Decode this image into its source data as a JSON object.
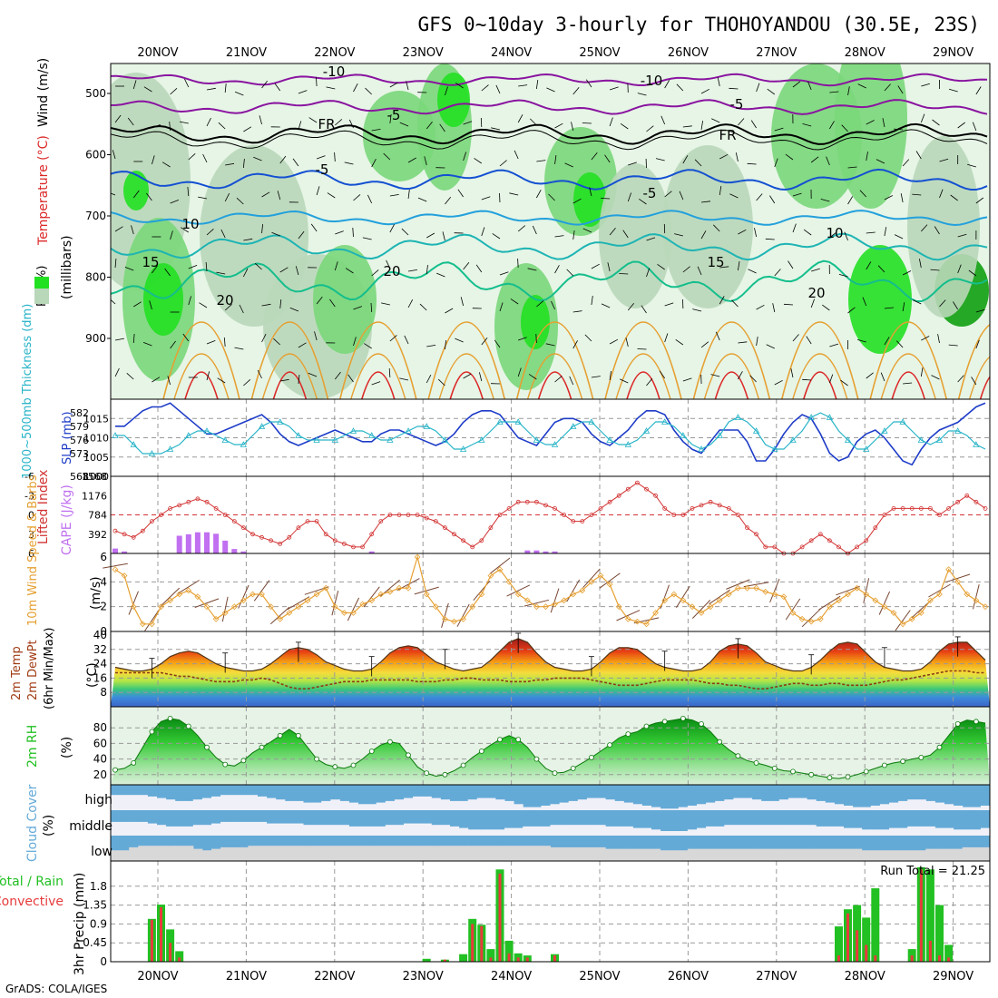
{
  "title": "GFS 0~10day 3-hourly for THOHOYANDOU (30.5E, 23S)",
  "footer": "GrADS: COLA/IGES",
  "dates": [
    "20NOV",
    "21NOV",
    "22NOV",
    "23NOV",
    "24NOV",
    "25NOV",
    "26NOV",
    "27NOV",
    "28NOV",
    "29NOV"
  ],
  "colors": {
    "rh_light": "#e6f5e6",
    "rh_mid": "#b9d7b9",
    "rh_green": "#7ad77a",
    "rh_bright": "#22e022",
    "rh_dark": "#10a010",
    "temp_purple": "#8a14a0",
    "temp_black": "#000000",
    "temp_blue": "#1450d2",
    "temp_lblue": "#23a0dc",
    "temp_teal": "#1eb4b4",
    "temp_green": "#14be8c",
    "temp_orange": "#e6a032",
    "temp_red": "#dc2828",
    "slp": "#1e3cc8",
    "thickness": "#28b4c8",
    "lifted": "#d23232",
    "cape": "#c070f0",
    "wind": "#e6a032",
    "barb": "#784632",
    "cloud": "#64aad7",
    "cloud_gap": "#f0f0f8",
    "precip_total": "#22c022",
    "precip_conv": "#e63c3c"
  },
  "panels": {
    "upper": {
      "axis_label_rh": "RH (%)",
      "axis_label_temp": "Temperature (°C)",
      "axis_label_wind": "Wind (m/s)",
      "axis_label_unit": "(millibars)",
      "pressure_ticks": [
        "500",
        "600",
        "700",
        "800",
        "900"
      ],
      "contour_labels": [
        "-10",
        "-10",
        "-5",
        "-5",
        "FR",
        "FR",
        "-5",
        "-5",
        "10",
        "15",
        "20",
        "20",
        "15",
        "20",
        "10"
      ]
    },
    "slp": {
      "label_slp": "SLP (mb)",
      "label_thick": "1000~500mb Thickness (dm)",
      "slp_ticks": [
        "1000",
        "1005",
        "1010",
        "1015"
      ],
      "thick_ticks": [
        "568",
        "573",
        "576",
        "579",
        "582"
      ]
    },
    "cape": {
      "label_li": "Lifted Index",
      "label_cape": "CAPE (J/kg)",
      "li_ticks": [
        "-6",
        "-3",
        "0",
        "3",
        "6"
      ],
      "cape_ticks": [
        "1568",
        "1176",
        "784",
        "392"
      ]
    },
    "wind10": {
      "label": "10m Wind Speed & Barbs",
      "unit": "(m/s)",
      "ticks": [
        "0",
        "2",
        "4",
        "6"
      ]
    },
    "temp2m": {
      "label1": "2m Temp",
      "label2": "2m DewPt",
      "label3": "(6hr Min/Max)",
      "unit": "(°C)",
      "ticks": [
        "8",
        "16",
        "24",
        "32",
        "40"
      ]
    },
    "rh2m": {
      "label": "2m RH",
      "unit": "(%)",
      "ticks": [
        "20",
        "40",
        "60",
        "80"
      ]
    },
    "cloud": {
      "label": "Cloud Cover",
      "unit": "(%)",
      "levels": [
        "high",
        "middle",
        "low"
      ]
    },
    "precip": {
      "label1": "3hr Precip (mm)",
      "label2": "Total / Rain",
      "label3": "Convective",
      "ticks": [
        "0",
        "0.45",
        "0.9",
        "1.35",
        "1.8"
      ],
      "run_total": "Run Total = 21.25"
    }
  },
  "chart_data": {
    "type": "meteogram",
    "time_step_hours": 3,
    "x_dates": [
      "20NOV",
      "21NOV",
      "22NOV",
      "23NOV",
      "24NOV",
      "25NOV",
      "26NOV",
      "27NOV",
      "28NOV",
      "29NOV"
    ],
    "slp_mb": [
      1013,
      1013,
      1015,
      1017,
      1018,
      1018,
      1019,
      1017,
      1015,
      1013,
      1011,
      1011,
      1012,
      1013,
      1014,
      1015,
      1016,
      1014,
      1011,
      1009,
      1008,
      1009,
      1010,
      1011,
      1012,
      1011,
      1010,
      1009,
      1009,
      1011,
      1012,
      1012,
      1011,
      1010,
      1009,
      1008,
      1009,
      1011,
      1014,
      1016,
      1017,
      1017,
      1016,
      1013,
      1010,
      1009,
      1008,
      1011,
      1014,
      1015,
      1015,
      1014,
      1011,
      1009,
      1008,
      1010,
      1012,
      1015,
      1017,
      1017,
      1016,
      1012,
      1009,
      1007,
      1006,
      1009,
      1012,
      1012,
      1012,
      1009,
      1004,
      1004,
      1007,
      1011,
      1014,
      1016,
      1015,
      1011,
      1006,
      1004,
      1005,
      1009,
      1011,
      1012,
      1010,
      1007,
      1004,
      1003,
      1007,
      1010,
      1012,
      1013,
      1014,
      1016,
      1018,
      1019
    ],
    "thickness_dm": [
      577,
      577,
      575,
      573,
      573,
      573,
      574,
      575,
      577,
      578,
      578,
      577,
      576,
      575,
      575,
      577,
      579,
      580,
      580,
      579,
      577,
      576,
      576,
      576,
      576,
      577,
      578,
      578,
      577,
      576,
      576,
      577,
      578,
      579,
      579,
      578,
      576,
      574,
      574,
      575,
      576,
      578,
      580,
      580,
      580,
      578,
      576,
      575,
      575,
      577,
      579,
      580,
      580,
      578,
      576,
      575,
      575,
      576,
      578,
      580,
      580,
      579,
      577,
      575,
      574,
      575,
      577,
      580,
      581,
      580,
      578,
      575,
      574,
      574,
      576,
      578,
      581,
      582,
      581,
      578,
      576,
      574,
      574,
      576,
      578,
      580,
      580,
      578,
      576,
      575,
      576,
      578,
      578,
      577,
      575,
      574
    ],
    "lifted_index": [
      2.5,
      3,
      3.5,
      2.5,
      1,
      0,
      -1,
      -1.5,
      -2,
      -2.5,
      -2,
      -1,
      0,
      1,
      2,
      3,
      3.5,
      4,
      4.5,
      3.5,
      2,
      1,
      1,
      3,
      4,
      4.5,
      5,
      5,
      3,
      1,
      0,
      0,
      0,
      0,
      0.5,
      1,
      2,
      3,
      4,
      5,
      4,
      2,
      0,
      -1,
      -2,
      -2,
      -2,
      -1.5,
      -1,
      0,
      1,
      1,
      0,
      -1,
      -2,
      -3,
      -4,
      -5,
      -4,
      -3,
      -1,
      0,
      0,
      -1,
      -1.5,
      -2,
      -1.5,
      -1,
      0,
      2,
      3,
      5,
      5,
      6,
      6,
      5,
      4,
      3,
      4,
      5,
      6,
      5,
      4,
      2,
      0,
      -1,
      -1,
      -1,
      -1,
      -1,
      0,
      -1,
      -2,
      -3,
      -2,
      -1
    ],
    "cape_jkg": [
      100,
      40,
      0,
      0,
      0,
      0,
      0,
      360,
      390,
      430,
      430,
      400,
      260,
      90,
      40,
      0,
      0,
      0,
      0,
      0,
      0,
      0,
      0,
      0,
      0,
      0,
      0,
      0,
      40,
      0,
      0,
      0,
      0,
      0,
      0,
      0,
      0,
      0,
      0,
      0,
      0,
      0,
      0,
      0,
      0,
      60,
      60,
      40,
      40,
      0,
      0,
      0,
      0,
      0,
      0,
      0,
      0,
      0,
      0,
      0,
      0,
      0,
      0,
      0,
      0,
      0,
      0,
      0,
      0,
      0,
      0,
      0,
      0,
      0,
      0,
      0,
      0,
      0,
      0,
      0,
      0,
      0,
      0,
      0,
      0,
      0,
      0,
      0,
      0,
      0,
      0,
      0,
      0,
      0,
      0,
      0
    ],
    "wind10_ms": [
      5,
      4.5,
      2,
      0.6,
      0.6,
      2,
      2.5,
      3,
      3.3,
      2.8,
      2,
      1,
      1.5,
      2,
      2.5,
      3,
      3,
      2,
      1,
      1.5,
      2,
      2.5,
      3,
      3.5,
      2,
      1.5,
      1.5,
      2.2,
      2.5,
      3,
      3.2,
      3.5,
      3.5,
      6,
      3,
      2,
      1,
      0.8,
      1,
      2,
      3,
      4.5,
      5,
      4,
      3,
      2.5,
      2,
      2,
      2.2,
      2.5,
      3,
      3.3,
      4,
      4.5,
      3.8,
      2,
      1,
      0.8,
      0.6,
      1.5,
      2.5,
      3,
      2.5,
      2,
      1.5,
      2,
      2.5,
      3,
      3.5,
      3.5,
      3.5,
      3.2,
      3,
      2.8,
      1.5,
      1,
      0.8,
      1,
      2,
      2.5,
      3,
      3.5,
      3,
      2.5,
      2,
      1.5,
      0.6,
      1,
      1.5,
      2.5,
      3,
      5,
      4,
      3,
      2.5,
      2
    ],
    "temp2m_c": [
      22,
      21,
      20,
      20,
      21,
      24,
      28,
      30,
      31,
      30,
      27,
      24,
      22,
      21,
      20,
      20,
      21,
      24,
      28,
      32,
      33,
      32,
      29,
      25,
      23,
      21,
      20,
      20,
      21,
      25,
      30,
      33,
      34,
      33,
      29,
      25,
      23,
      21,
      20,
      21,
      22,
      26,
      31,
      36,
      38,
      36,
      30,
      25,
      22,
      21,
      20,
      20,
      21,
      25,
      30,
      33,
      33,
      32,
      28,
      24,
      22,
      21,
      20,
      20,
      21,
      25,
      31,
      34,
      35,
      34,
      30,
      25,
      23,
      21,
      20,
      20,
      22,
      26,
      31,
      35,
      36,
      35,
      30,
      25,
      22,
      21,
      20,
      20,
      21,
      25,
      31,
      35,
      36,
      36,
      31,
      26
    ],
    "dewpt2m_c": [
      19,
      19,
      19,
      19,
      19,
      19,
      18,
      17,
      17,
      16,
      15,
      14,
      14,
      14,
      15,
      15,
      16,
      15,
      13,
      11,
      10,
      10,
      11,
      12,
      13,
      14,
      14,
      14,
      15,
      15,
      15,
      15,
      15,
      14,
      14,
      14,
      15,
      15,
      16,
      16,
      15,
      15,
      15,
      14,
      14,
      14,
      15,
      15,
      16,
      16,
      16,
      16,
      15,
      14,
      13,
      12,
      12,
      12,
      13,
      14,
      15,
      15,
      15,
      15,
      14,
      13,
      13,
      12,
      12,
      11,
      10,
      10,
      11,
      12,
      13,
      13,
      12,
      12,
      13,
      13,
      12,
      12,
      12,
      13,
      14,
      15,
      15,
      16,
      17,
      18,
      19,
      20,
      20,
      20,
      19,
      19
    ],
    "rh2m_pct": [
      26,
      28,
      35,
      55,
      75,
      88,
      92,
      90,
      82,
      70,
      55,
      42,
      33,
      31,
      38,
      48,
      55,
      62,
      70,
      78,
      70,
      55,
      40,
      33,
      30,
      28,
      32,
      40,
      50,
      58,
      62,
      60,
      45,
      30,
      22,
      18,
      20,
      25,
      32,
      42,
      50,
      58,
      65,
      70,
      65,
      55,
      40,
      28,
      22,
      23,
      28,
      35,
      42,
      50,
      58,
      67,
      72,
      75,
      82,
      86,
      88,
      90,
      92,
      90,
      85,
      75,
      62,
      52,
      44,
      38,
      35,
      32,
      28,
      25,
      24,
      22,
      20,
      18,
      16,
      15,
      17,
      20,
      24,
      28,
      32,
      35,
      37,
      40,
      42,
      45,
      55,
      70,
      85,
      90,
      88,
      86
    ],
    "cloud_high_pct": [
      0,
      0,
      0,
      0,
      10,
      20,
      30,
      40,
      40,
      30,
      20,
      10,
      0,
      0,
      0,
      0,
      10,
      20,
      30,
      40,
      40,
      50,
      50,
      40,
      30,
      40,
      50,
      60,
      60,
      50,
      40,
      30,
      20,
      10,
      10,
      20,
      30,
      40,
      40,
      30,
      20,
      20,
      30,
      40,
      60,
      80,
      80,
      70,
      60,
      50,
      40,
      30,
      20,
      20,
      30,
      40,
      50,
      60,
      70,
      80,
      90,
      90,
      80,
      70,
      60,
      50,
      40,
      30,
      20,
      20,
      30,
      40,
      40,
      30,
      20,
      20,
      30,
      40,
      50,
      60,
      70,
      80,
      80,
      70,
      60,
      50,
      40,
      30,
      30,
      40,
      50,
      60,
      70,
      80,
      80,
      70
    ],
    "cloud_mid_pct": [
      10,
      10,
      10,
      10,
      20,
      30,
      40,
      40,
      40,
      30,
      30,
      20,
      10,
      10,
      10,
      10,
      10,
      20,
      20,
      20,
      20,
      30,
      30,
      30,
      30,
      30,
      40,
      40,
      40,
      40,
      30,
      30,
      20,
      20,
      20,
      30,
      30,
      40,
      50,
      60,
      60,
      60,
      60,
      50,
      50,
      40,
      40,
      40,
      30,
      30,
      30,
      30,
      30,
      30,
      40,
      40,
      40,
      50,
      50,
      60,
      70,
      70,
      70,
      60,
      50,
      40,
      40,
      30,
      30,
      30,
      30,
      30,
      30,
      30,
      30,
      30,
      30,
      40,
      40,
      40,
      50,
      50,
      60,
      60,
      60,
      50,
      50,
      40,
      40,
      40,
      50,
      50,
      60,
      60,
      60,
      50
    ],
    "cloud_low_pct": [
      30,
      30,
      10,
      0,
      0,
      0,
      0,
      0,
      0,
      20,
      30,
      20,
      10,
      10,
      10,
      0,
      0,
      0,
      0,
      0,
      0,
      0,
      0,
      0,
      0,
      0,
      0,
      0,
      0,
      0,
      0,
      0,
      0,
      0,
      0,
      0,
      0,
      0,
      0,
      0,
      0,
      0,
      0,
      0,
      0,
      0,
      0,
      0,
      10,
      10,
      10,
      10,
      10,
      10,
      20,
      20,
      20,
      20,
      20,
      20,
      30,
      30,
      30,
      20,
      20,
      20,
      20,
      20,
      20,
      20,
      20,
      20,
      20,
      20,
      20,
      20,
      20,
      20,
      20,
      20,
      20,
      20,
      30,
      30,
      30,
      30,
      30,
      30,
      30,
      20,
      20,
      20,
      20,
      10,
      10,
      10
    ],
    "precip_total_mm": [
      0,
      0,
      0,
      0,
      1.02,
      1.36,
      0.77,
      0.25,
      0,
      0,
      0,
      0,
      0,
      0,
      0,
      0,
      0,
      0,
      0,
      0,
      0,
      0,
      0,
      0,
      0,
      0,
      0,
      0,
      0,
      0,
      0,
      0,
      0,
      0,
      0.07,
      0,
      0.05,
      0,
      0.18,
      1.02,
      0.88,
      0.3,
      2.2,
      0.5,
      0.2,
      0.15,
      0,
      0,
      0.18,
      0,
      0,
      0,
      0,
      0,
      0,
      0,
      0,
      0,
      0,
      0,
      0,
      0,
      0,
      0,
      0,
      0,
      0,
      0,
      0,
      0,
      0,
      0,
      0,
      0,
      0,
      0,
      0,
      0,
      0,
      0.84,
      1.25,
      1.35,
      1.05,
      1.75,
      0,
      0,
      0,
      0.3,
      2.25,
      2.2,
      1.35,
      0.4,
      0,
      0,
      0,
      0
    ],
    "precip_conv_mm": [
      0,
      0,
      0,
      0,
      1.0,
      1.3,
      0.45,
      0.1,
      0,
      0,
      0,
      0,
      0,
      0,
      0,
      0,
      0,
      0,
      0,
      0,
      0,
      0,
      0,
      0,
      0,
      0,
      0,
      0,
      0,
      0,
      0,
      0,
      0,
      0,
      0,
      0,
      0.05,
      0,
      0,
      0.9,
      0.85,
      0.1,
      2.1,
      0.2,
      0.1,
      0.1,
      0,
      0,
      0.15,
      0,
      0,
      0,
      0,
      0,
      0,
      0,
      0,
      0,
      0,
      0,
      0,
      0,
      0,
      0,
      0,
      0,
      0,
      0,
      0,
      0,
      0,
      0,
      0,
      0,
      0,
      0,
      0,
      0,
      0,
      0.15,
      1.15,
      0.75,
      0.4,
      0.15,
      0,
      0,
      0,
      0.15,
      2.2,
      0.5,
      0.15,
      0.1,
      0,
      0,
      0,
      0
    ]
  }
}
